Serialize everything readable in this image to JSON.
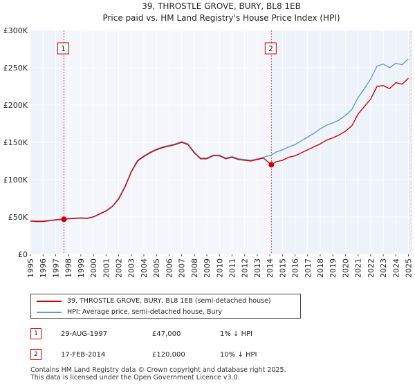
{
  "chart_data": {
    "type": "line",
    "title": "39, THROSTLE GROVE, BURY, BL8 1EB",
    "subtitle": "Price paid vs. HM Land Registry's House Price Index (HPI)",
    "xlabel": "",
    "ylabel": "",
    "xlim": [
      1995,
      2025.3
    ],
    "ylim": [
      0,
      300000
    ],
    "x_ticks": [
      1995,
      1996,
      1997,
      1998,
      1999,
      2000,
      2001,
      2002,
      2003,
      2004,
      2005,
      2006,
      2007,
      2008,
      2009,
      2010,
      2011,
      2012,
      2013,
      2014,
      2015,
      2016,
      2017,
      2018,
      2019,
      2020,
      2021,
      2022,
      2023,
      2024,
      2025
    ],
    "y_ticks": [
      {
        "value": 0,
        "label": "£0"
      },
      {
        "value": 50000,
        "label": "£50K"
      },
      {
        "value": 100000,
        "label": "£100K"
      },
      {
        "value": 150000,
        "label": "£150K"
      },
      {
        "value": 200000,
        "label": "£200K"
      },
      {
        "value": 250000,
        "label": "£250K"
      },
      {
        "value": 300000,
        "label": "£300K"
      }
    ],
    "series": [
      {
        "name": "39, THROSTLE GROVE, BURY, BL8 1EB (semi-detached house)",
        "color": "#cc0000",
        "x": [
          1995,
          1995.5,
          1996,
          1996.5,
          1997,
          1997.66,
          1998,
          1998.5,
          1999,
          1999.5,
          2000,
          2000.5,
          2001,
          2001.5,
          2002,
          2002.5,
          2003,
          2003.5,
          2004,
          2004.5,
          2005,
          2005.5,
          2006,
          2006.5,
          2007,
          2007.5,
          2008,
          2008.5,
          2009,
          2009.5,
          2010,
          2010.5,
          2011,
          2011.5,
          2012,
          2012.5,
          2013,
          2013.5,
          2014.12,
          2014.5,
          2015,
          2015.5,
          2016,
          2016.5,
          2017,
          2017.5,
          2018,
          2018.5,
          2019,
          2019.5,
          2020,
          2020.5,
          2021,
          2021.5,
          2022,
          2022.5,
          2023,
          2023.5,
          2024,
          2024.5,
          2025
        ],
        "y": [
          44500,
          44000,
          44000,
          45000,
          46000,
          47000,
          47500,
          48000,
          48500,
          48000,
          50000,
          54000,
          58000,
          64000,
          74000,
          90000,
          110000,
          125000,
          131000,
          136000,
          140000,
          143000,
          145000,
          147000,
          150000,
          147000,
          136000,
          128000,
          128000,
          132000,
          132000,
          128000,
          130000,
          127000,
          126000,
          125000,
          127000,
          129000,
          120000,
          124000,
          126000,
          130000,
          132000,
          136000,
          140000,
          144000,
          148000,
          153000,
          156000,
          160000,
          165000,
          172000,
          188000,
          198000,
          208000,
          225000,
          226000,
          222000,
          230000,
          228000,
          236000
        ]
      },
      {
        "name": "HPI: Average price, semi-detached house, Bury",
        "color": "#6699cc",
        "x": [
          1995,
          1995.5,
          1996,
          1996.5,
          1997,
          1997.66,
          1998,
          1998.5,
          1999,
          1999.5,
          2000,
          2000.5,
          2001,
          2001.5,
          2002,
          2002.5,
          2003,
          2003.5,
          2004,
          2004.5,
          2005,
          2005.5,
          2006,
          2006.5,
          2007,
          2007.5,
          2008,
          2008.5,
          2009,
          2009.5,
          2010,
          2010.5,
          2011,
          2011.5,
          2012,
          2012.5,
          2013,
          2013.5,
          2014.12,
          2014.5,
          2015,
          2015.5,
          2016,
          2016.5,
          2017,
          2017.5,
          2018,
          2018.5,
          2019,
          2019.5,
          2020,
          2020.5,
          2021,
          2021.5,
          2022,
          2022.5,
          2023,
          2023.5,
          2024,
          2024.5,
          2025
        ],
        "y": [
          45000,
          44500,
          44500,
          45500,
          46500,
          47500,
          48000,
          48500,
          49000,
          48500,
          50500,
          54500,
          58500,
          64500,
          75000,
          91000,
          111000,
          126000,
          132000,
          137000,
          141000,
          144000,
          146000,
          148000,
          151000,
          148000,
          137000,
          129000,
          129000,
          133000,
          133000,
          129000,
          131000,
          128000,
          127000,
          126000,
          128000,
          130000,
          133000,
          137000,
          140000,
          144000,
          147000,
          152000,
          157000,
          162000,
          168000,
          173000,
          176000,
          180000,
          186000,
          194000,
          210000,
          222000,
          235000,
          252000,
          255000,
          250000,
          256000,
          254000,
          262000
        ]
      }
    ],
    "annotations": [
      {
        "label": "1",
        "x": 1997.66,
        "y": 47000
      },
      {
        "label": "2",
        "x": 2014.12,
        "y": 120000
      }
    ],
    "legend_position": "below"
  },
  "legend": [
    {
      "label": "39, THROSTLE GROVE, BURY, BL8 1EB (semi-detached house)",
      "color": "#cc0000"
    },
    {
      "label": "HPI: Average price, semi-detached house, Bury",
      "color": "#6699cc"
    }
  ],
  "transactions": [
    {
      "num": "1",
      "date": "29-AUG-1997",
      "price": "£47,000",
      "rel": "1% ↓ HPI"
    },
    {
      "num": "2",
      "date": "17-FEB-2014",
      "price": "£120,000",
      "rel": "10% ↓ HPI"
    }
  ],
  "footer": {
    "line1": "Contains HM Land Registry data © Crown copyright and database right 2025.",
    "line2": "This data is licensed under the Open Government Licence v3.0."
  }
}
